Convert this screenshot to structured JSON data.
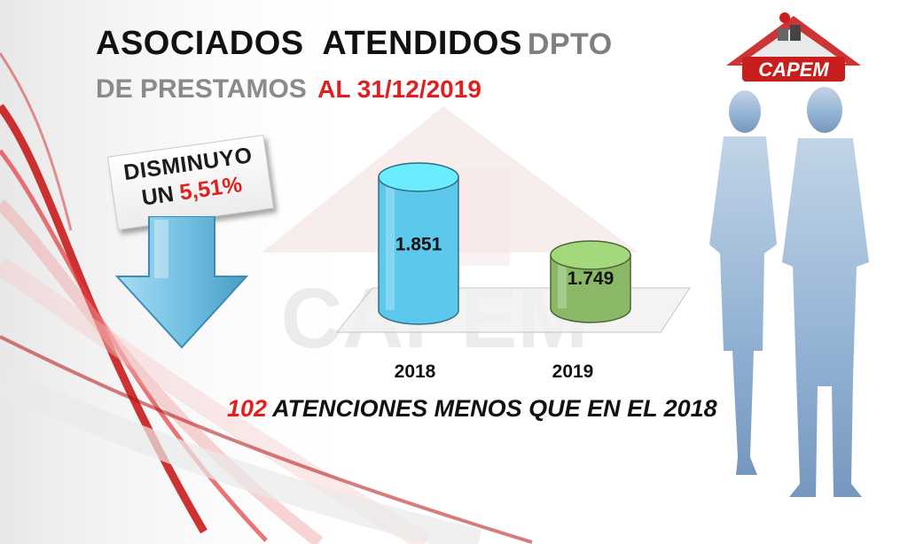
{
  "title": {
    "line1_main": "ASOCIADOS  ATENDIDOS",
    "line1_suffix": "DPTO",
    "line2_main": "DE PRESTAMOS",
    "line2_date": "AL 31/12/2019"
  },
  "logo": {
    "text": "CAPEM",
    "watermark_text": "CAPEM"
  },
  "badge": {
    "line1": "DISMINUYO",
    "line2_prefix": "UN",
    "line2_value": "5,51%"
  },
  "subtitle": {
    "number": "102",
    "text": "ATENCIONES MENOS QUE EN EL 2018"
  },
  "colors": {
    "bar_2018": "#5bc8ec",
    "bar_2019": "#8ab867",
    "accent_red": "#e02020",
    "title_gray": "#8a8a8a",
    "arrow_blue": "#7fc6e6",
    "silhouette_blue": "#8fb0d2"
  },
  "icons": {
    "arrow": "down-arrow-icon",
    "logo": "capem-logo",
    "people": "business-people-silhouette"
  },
  "chart_data": {
    "type": "bar",
    "categories": [
      "2018",
      "2019"
    ],
    "values": [
      1851,
      1749
    ],
    "data_labels": [
      "1.851",
      "1.749"
    ],
    "title": "",
    "xlabel": "",
    "ylabel": "",
    "grid": false,
    "legend": "none",
    "style": "3d-cylinder"
  }
}
